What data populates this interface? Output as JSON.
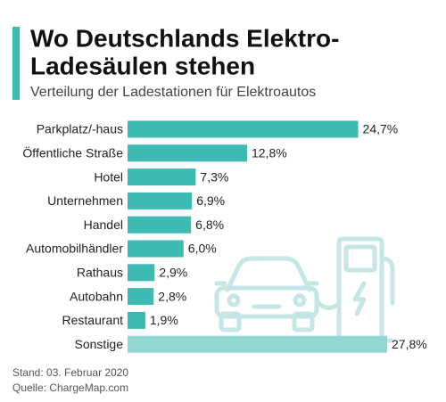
{
  "chart_data": {
    "type": "bar",
    "title_lines": [
      "Wo Deutschlands Elektro-",
      "Ladesäulen stehen"
    ],
    "subtitle": "Verteilung der Ladestationen für Elektroautos",
    "categories": [
      "Parkplatz/-haus",
      "Öffentliche Straße",
      "Hotel",
      "Unternehmen",
      "Handel",
      "Automobilhändler",
      "Rathaus",
      "Autobahn",
      "Restaurant",
      "Sonstige"
    ],
    "values": [
      24.7,
      12.8,
      7.3,
      6.9,
      6.8,
      6.0,
      2.9,
      2.8,
      1.9,
      27.8
    ],
    "value_labels": [
      "24,7%",
      "12,8%",
      "7,3%",
      "6,9%",
      "6,8%",
      "6,0%",
      "2,9%",
      "2,8%",
      "1,9%",
      "27,8%"
    ],
    "colors": [
      "#3dbab3",
      "#3dbab3",
      "#3dbab3",
      "#3dbab3",
      "#3dbab3",
      "#3dbab3",
      "#3dbab3",
      "#3dbab3",
      "#3dbab3",
      "#93d7d3"
    ],
    "notes": [
      "Stand: 03. Februar 2020",
      "Quelle: ChargeMap.com"
    ]
  }
}
